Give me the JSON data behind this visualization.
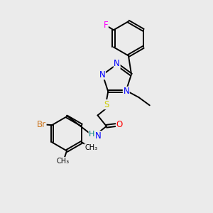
{
  "background_color": "#ebebeb",
  "atom_colors": {
    "N": "#0000ff",
    "S": "#cccc00",
    "O": "#ff0000",
    "F": "#ff00ff",
    "Br": "#cc7722",
    "H": "#008080",
    "C": "#000000"
  },
  "bond_color": "#000000",
  "figsize": [
    3.0,
    3.0
  ],
  "dpi": 100
}
